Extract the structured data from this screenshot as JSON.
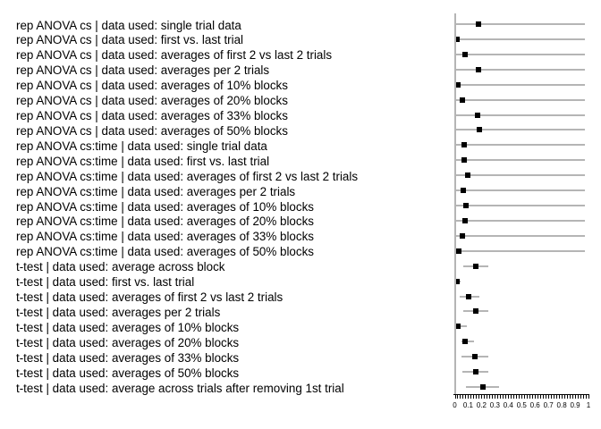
{
  "chart_data": {
    "type": "scatter",
    "subtype": "forest-dot-plot-with-error-bars",
    "title": "",
    "xlabel": "",
    "ylabel": "",
    "xlim": [
      0,
      1
    ],
    "grid": false,
    "legend": false,
    "x_tick_labels": [
      "0",
      "0.1",
      "0.2",
      "0.3",
      "0.4",
      "0.5",
      "0.6",
      "0.7",
      "0.8",
      "0.9",
      "1"
    ],
    "x_minor_tick_step": 0.02,
    "marker_color": "#000000",
    "errorbar_color": "#b5b5b5",
    "rows": [
      {
        "label": "rep ANOVA cs | data used: single trial data",
        "value": 0.18,
        "ci": [
          0.0,
          0.973
        ]
      },
      {
        "label": "rep ANOVA cs | data used: first vs. last trial",
        "value": 0.015,
        "ci": [
          0.0,
          0.973
        ]
      },
      {
        "label": "rep ANOVA cs | data used: averages of first 2 vs last 2 trials",
        "value": 0.075,
        "ci": [
          0.0,
          0.973
        ]
      },
      {
        "label": "rep ANOVA cs | data used: averages per 2 trials",
        "value": 0.18,
        "ci": [
          0.0,
          0.973
        ]
      },
      {
        "label": "rep ANOVA cs | data used: averages of 10% blocks",
        "value": 0.022,
        "ci": [
          0.0,
          0.973
        ]
      },
      {
        "label": "rep ANOVA cs | data used: averages of 20% blocks",
        "value": 0.057,
        "ci": [
          0.0,
          0.973
        ]
      },
      {
        "label": "rep ANOVA cs | data used: averages of 33% blocks",
        "value": 0.17,
        "ci": [
          0.0,
          0.973
        ]
      },
      {
        "label": "rep ANOVA cs | data used: averages of 50% blocks",
        "value": 0.182,
        "ci": [
          0.0,
          0.973
        ]
      },
      {
        "label": "rep ANOVA cs:time | data used: single trial data",
        "value": 0.068,
        "ci": [
          0.0,
          0.973
        ]
      },
      {
        "label": "rep ANOVA cs:time | data used: first vs. last trial",
        "value": 0.068,
        "ci": [
          0.0,
          0.973
        ]
      },
      {
        "label": "rep ANOVA cs:time | data used: averages of first 2 vs last 2 trials",
        "value": 0.095,
        "ci": [
          0.0,
          0.973
        ]
      },
      {
        "label": "rep ANOVA cs:time | data used: averages per 2 trials",
        "value": 0.064,
        "ci": [
          0.0,
          0.973
        ]
      },
      {
        "label": "rep ANOVA cs:time | data used: averages of 10% blocks",
        "value": 0.082,
        "ci": [
          0.0,
          0.973
        ]
      },
      {
        "label": "rep ANOVA cs:time | data used: averages of 20% blocks",
        "value": 0.08,
        "ci": [
          0.0,
          0.973
        ]
      },
      {
        "label": "rep ANOVA cs:time | data used: averages of 33% blocks",
        "value": 0.055,
        "ci": [
          0.0,
          0.973
        ]
      },
      {
        "label": "rep ANOVA cs:time | data used: averages of 50% blocks",
        "value": 0.033,
        "ci": [
          0.0,
          0.973
        ]
      },
      {
        "label": "t-test | data used: average across block",
        "value": 0.157,
        "ci": [
          0.066,
          0.251
        ]
      },
      {
        "label": "t-test | data used: first vs. last trial",
        "value": 0.015,
        "ci": [
          0.0,
          0.043
        ]
      },
      {
        "label": "t-test | data used: averages of first 2 vs last 2 trials",
        "value": 0.106,
        "ci": [
          0.039,
          0.184
        ]
      },
      {
        "label": "t-test | data used: averages per 2 trials",
        "value": 0.155,
        "ci": [
          0.066,
          0.251
        ]
      },
      {
        "label": "t-test | data used: averages of 10% blocks",
        "value": 0.025,
        "ci": [
          0.0,
          0.092
        ]
      },
      {
        "label": "t-test | data used: averages of 20% blocks",
        "value": 0.077,
        "ci": [
          0.05,
          0.144
        ]
      },
      {
        "label": "t-test | data used: averages of 33% blocks",
        "value": 0.151,
        "ci": [
          0.048,
          0.249
        ]
      },
      {
        "label": "t-test | data used: averages of 50% blocks",
        "value": 0.155,
        "ci": [
          0.059,
          0.249
        ]
      },
      {
        "label": "t-test | data used: average across trials after removing 1st trial",
        "value": 0.211,
        "ci": [
          0.082,
          0.333
        ]
      }
    ]
  }
}
